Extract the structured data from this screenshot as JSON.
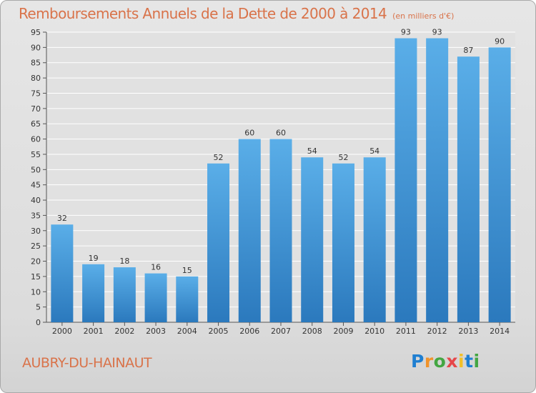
{
  "title": "Remboursements Annuels de la Dette de 2000 à 2014",
  "unit": "(en milliers d'€)",
  "city": "AUBRY-DU-HAINAUT",
  "logo": {
    "text": "Proxiti",
    "letters": [
      "P",
      "r",
      "o",
      "x",
      "i",
      "t",
      "i"
    ]
  },
  "colors": {
    "bar_top": "#5aaee8",
    "bar_bottom": "#2b79bd",
    "title": "#d9734a",
    "grid": "#ffffff",
    "plot_bg": "#e1e1e1"
  },
  "chart_data": {
    "type": "bar",
    "title": "Remboursements Annuels de la Dette de 2000 à 2014",
    "subtitle": "(en milliers d'€)",
    "xlabel": "",
    "ylabel": "",
    "categories": [
      "2000",
      "2001",
      "2002",
      "2003",
      "2004",
      "2005",
      "2006",
      "2007",
      "2008",
      "2009",
      "2010",
      "2011",
      "2012",
      "2013",
      "2014"
    ],
    "values": [
      32,
      19,
      18,
      16,
      15,
      52,
      60,
      60,
      54,
      52,
      54,
      93,
      93,
      87,
      90
    ],
    "ylim": [
      0,
      95
    ],
    "yticks": [
      0,
      5,
      10,
      15,
      20,
      25,
      30,
      35,
      40,
      45,
      50,
      55,
      60,
      65,
      70,
      75,
      80,
      85,
      90,
      95
    ],
    "grid": true,
    "data_labels": true
  }
}
